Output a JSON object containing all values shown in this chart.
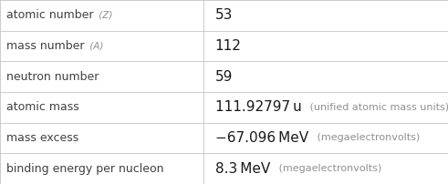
{
  "rows": [
    {
      "label": "atomic number",
      "label_suffix": " (Z)",
      "value_main": "53",
      "value_unit": ""
    },
    {
      "label": "mass number",
      "label_suffix": " (A)",
      "value_main": "112",
      "value_unit": ""
    },
    {
      "label": "neutron number",
      "label_suffix": "",
      "value_main": "59",
      "value_unit": ""
    },
    {
      "label": "atomic mass",
      "label_suffix": "",
      "value_main": "111.92797 u",
      "value_unit": " (unified atomic mass units)"
    },
    {
      "label": "mass excess",
      "label_suffix": "",
      "value_main": "−67.096 MeV",
      "value_unit": " (megaelectronvolts)"
    },
    {
      "label": "binding energy per nucleon",
      "label_suffix": "",
      "value_main": "8.3 MeV",
      "value_unit": " (megaelectronvolts)"
    }
  ],
  "col_split": 0.455,
  "bg_color": "#ffffff",
  "grid_color": "#cccccc",
  "label_color": "#404040",
  "value_color": "#1a1a1a",
  "unit_color": "#909090",
  "suffix_color": "#909090",
  "label_fontsize": 9.0,
  "value_fontsize": 11.0,
  "unit_fontsize": 8.0,
  "suffix_fontsize": 7.5
}
